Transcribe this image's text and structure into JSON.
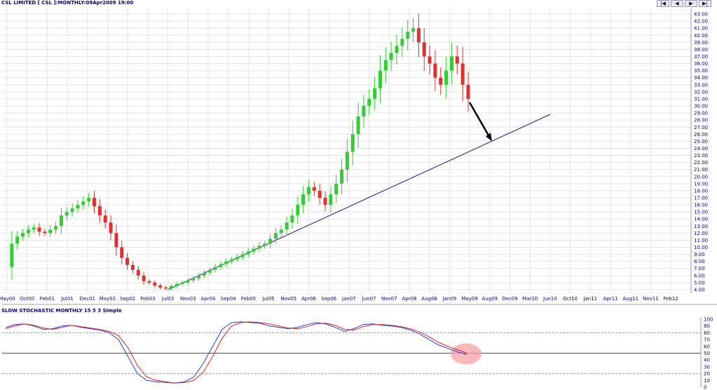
{
  "header": {
    "title": "CSL LIMITED [ CSL ]:MONTHLY:09Apr2009 19:00",
    "indicator_title": "SLOW STOCHASTIC MONTHLY 15 5 3 Simple"
  },
  "nav": {
    "buttons": [
      "|◀",
      "◀",
      "▶",
      "▶|"
    ]
  },
  "colors": {
    "background": "#ffffff",
    "grid": "#e3e3e3",
    "axis_text": "#000080",
    "title_text": "#000080",
    "up_candle": "#33cc33",
    "down_candle": "#e03030",
    "trendline": "#1a1a8c",
    "stoch_k": "#2040e0",
    "stoch_d": "#e02020",
    "highlight": "#f5a0a8"
  },
  "chart_data": [
    {
      "type": "candlestick",
      "name": "price",
      "y_ticks": [
        "4.00",
        "5.00",
        "6.00",
        "7.00",
        "8.00",
        "9.00",
        "10.00",
        "11.00",
        "12.00",
        "13.00",
        "14.00",
        "15.00",
        "16.00",
        "17.00",
        "18.00",
        "19.00",
        "20.00",
        "21.00",
        "22.00",
        "23.00",
        "24.00",
        "25.00",
        "26.00",
        "27.00",
        "28.00",
        "29.00",
        "30.00",
        "31.00",
        "32.00",
        "33.00",
        "34.00",
        "35.00",
        "36.00",
        "37.00",
        "38.00",
        "39.00",
        "40.00",
        "41.00",
        "42.00",
        "43.00"
      ],
      "ylim": [
        3.5,
        43.8
      ],
      "x_ticks": [
        "May00",
        "Oct00",
        "Feb01",
        "Jul01",
        "Dec01",
        "May02",
        "Sep02",
        "Feb03",
        "Jul03",
        "Nov03",
        "Apr04",
        "Sep04",
        "Feb05",
        "Jul05",
        "Nov05",
        "Apr06",
        "Sep06",
        "Jan07",
        "Jun07",
        "Nov07",
        "Apr08",
        "Aug08",
        "Jan09",
        "May09",
        "Aug09",
        "Dec09",
        "Mar10",
        "Jun10",
        "Oct10",
        "Jan11",
        "Apr11",
        "Aug11",
        "Nov11",
        "Feb12"
      ],
      "close_path": [
        7.2,
        10.5,
        11.5,
        12.0,
        12.5,
        12.8,
        12.2,
        12.0,
        12.5,
        13.0,
        14.5,
        15.0,
        15.5,
        16.0,
        16.5,
        17.0,
        15.8,
        14.5,
        13.5,
        12.0,
        10.0,
        8.5,
        7.5,
        6.8,
        6.0,
        5.2,
        5.0,
        4.6,
        4.3,
        4.2,
        4.5,
        4.8,
        5.0,
        5.3,
        5.6,
        6.0,
        6.4,
        6.8,
        7.2,
        7.6,
        8.0,
        8.3,
        8.6,
        9.0,
        9.4,
        9.8,
        10.2,
        10.5,
        11.2,
        12.0,
        12.5,
        13.5,
        14.5,
        16.0,
        17.5,
        18.5,
        18.0,
        17.0,
        16.0,
        17.5,
        19.0,
        21.0,
        23.5,
        26.0,
        28.5,
        30.0,
        31.0,
        32.5,
        35.0,
        36.5,
        37.5,
        38.5,
        39.5,
        40.5,
        41.0,
        39.0,
        37.0,
        36.0,
        34.0,
        33.0,
        35.0,
        37.0,
        36.0,
        33.0,
        31.0
      ],
      "trendline": {
        "from": [
          "Jul03",
          4.0
        ],
        "to": [
          "Jun10",
          28.8
        ]
      },
      "annotation": "black arrow pointing from the last candle down toward the trendline"
    },
    {
      "type": "line",
      "name": "stochastic",
      "y_ticks": [
        "0",
        "10",
        "20",
        "30",
        "40",
        "50",
        "60",
        "70",
        "80",
        "90",
        "100"
      ],
      "ylim": [
        0,
        100
      ],
      "reference_levels": [
        20,
        50,
        80
      ],
      "series": [
        {
          "values": [
            88,
            92,
            93,
            90,
            85,
            86,
            90,
            91,
            88,
            86,
            84,
            80,
            70,
            45,
            20,
            10,
            8,
            7,
            6,
            8,
            15,
            35,
            60,
            85,
            95,
            96,
            95,
            94,
            90,
            88,
            86,
            88,
            92,
            95,
            93,
            88,
            82,
            86,
            92,
            93,
            91,
            90,
            88,
            84,
            78,
            70,
            62,
            57,
            52,
            48
          ]
        },
        {
          "values": [
            86,
            90,
            93,
            91,
            87,
            85,
            88,
            91,
            89,
            87,
            85,
            82,
            76,
            58,
            32,
            15,
            10,
            8,
            6,
            7,
            10,
            22,
            45,
            72,
            90,
            95,
            96,
            95,
            93,
            90,
            87,
            86,
            89,
            93,
            94,
            91,
            85,
            84,
            89,
            92,
            92,
            91,
            89,
            86,
            81,
            74,
            66,
            60,
            55,
            50
          ]
        }
      ],
      "highlight_value": 49
    }
  ]
}
